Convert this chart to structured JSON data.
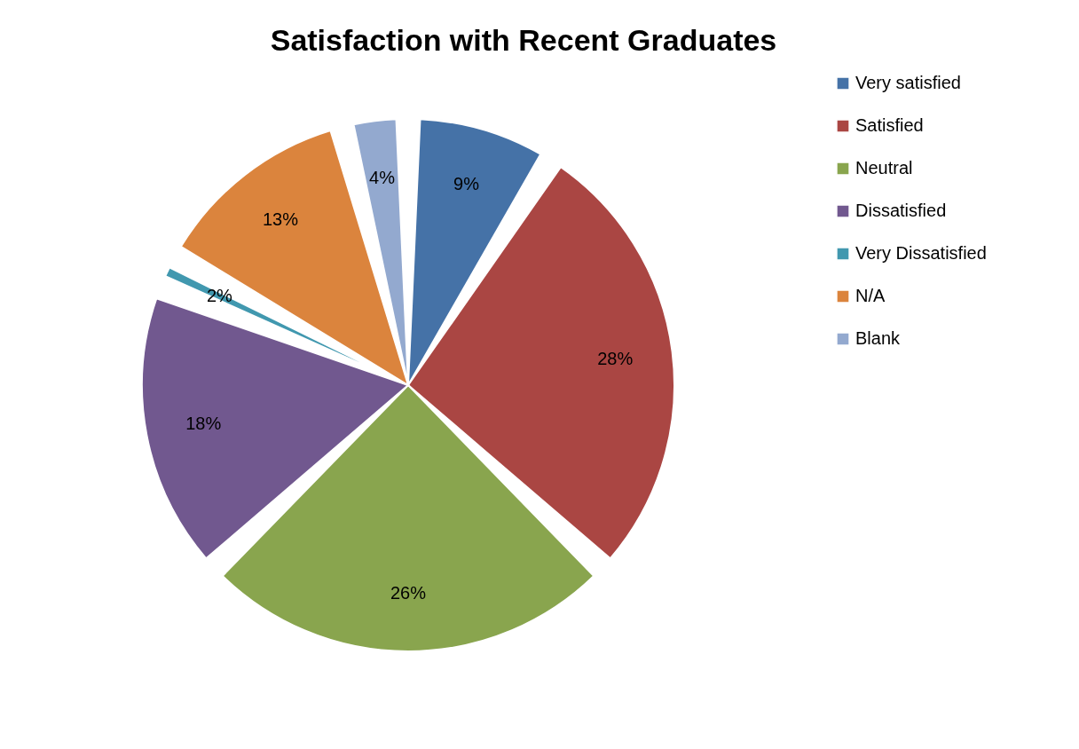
{
  "chart_data": {
    "type": "pie",
    "title": "Satisfaction with Recent Graduates",
    "categories": [
      "Very satisfied",
      "Satisfied",
      "Neutral",
      "Dissatisfied",
      "Very Dissatisfied",
      "N/A",
      "Blank"
    ],
    "values": [
      9,
      28,
      26,
      18,
      2,
      13,
      4
    ],
    "value_labels": [
      "9%",
      "28%",
      "26%",
      "18%",
      "2%",
      "13%",
      "4%"
    ],
    "colors": [
      "#4572a7",
      "#aa4643",
      "#89a54e",
      "#71588f",
      "#4198af",
      "#db843d",
      "#93a9cf"
    ],
    "legend": "right"
  }
}
